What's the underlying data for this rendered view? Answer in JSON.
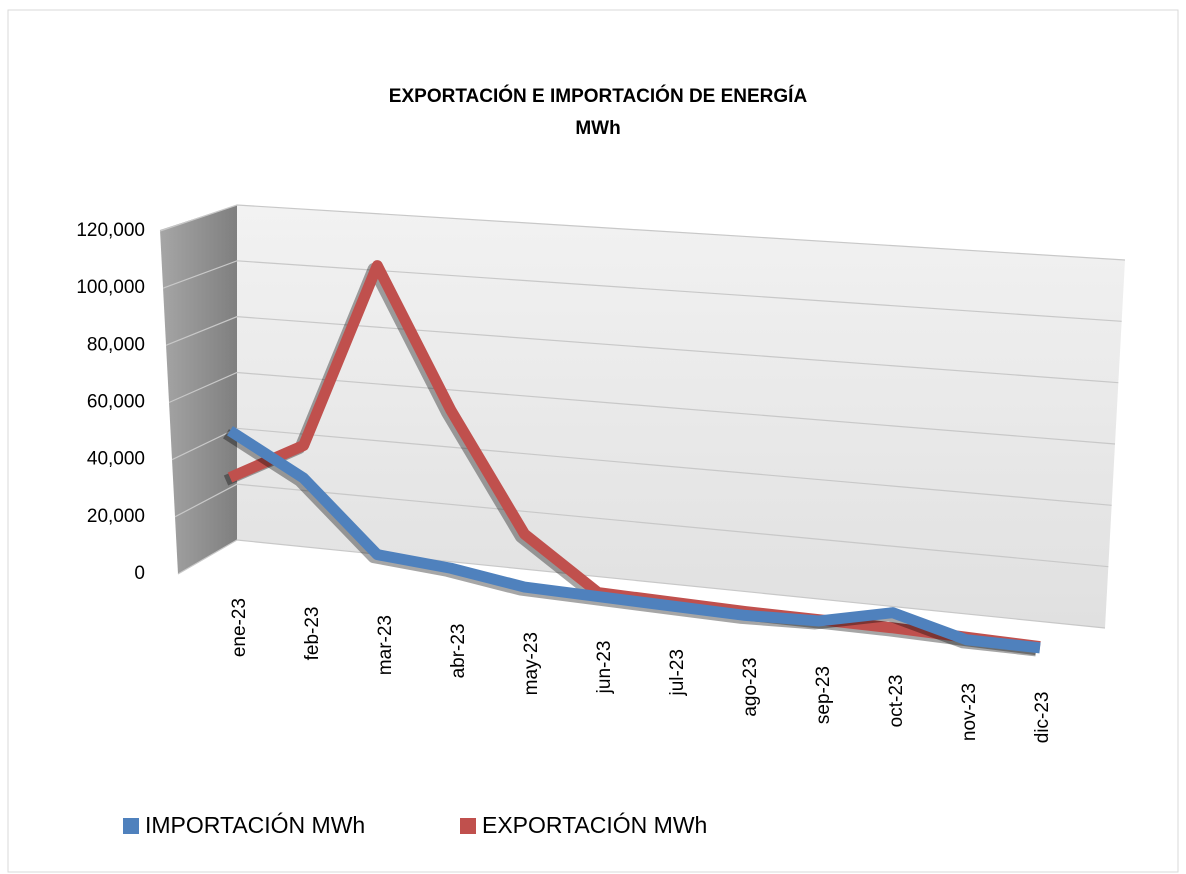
{
  "chart_data": {
    "type": "line",
    "title": "EXPORTACIÓN E IMPORTACIÓN DE ENERGÍA",
    "subtitle": "MWh",
    "categories": [
      "ene-23",
      "feb-23",
      "mar-23",
      "abr-23",
      "may-23",
      "jun-23",
      "jul-23",
      "ago-23",
      "sep-23",
      "oct-23",
      "nov-23",
      "dic-23"
    ],
    "series": [
      {
        "name": "IMPORTACIÓN MWh",
        "color": "#4f81bd",
        "values": [
          47000,
          33000,
          8000,
          6000,
          2000,
          1500,
          1000,
          500,
          1500,
          8000,
          500,
          500
        ]
      },
      {
        "name": "EXPORTACIÓN MWh",
        "color": "#c0504d",
        "values": [
          30000,
          45000,
          115000,
          65000,
          22000,
          3000,
          2500,
          2000,
          2000,
          2000,
          1500,
          1000
        ]
      }
    ],
    "ylim": [
      0,
      120000
    ],
    "yticks": [
      0,
      {
        "value": 20000,
        "label": "20,000"
      },
      {
        "value": 40000,
        "label": "40,000"
      },
      {
        "value": 60000,
        "label": "60,000"
      },
      {
        "value": 80000,
        "label": "80,000"
      },
      {
        "value": 100000,
        "label": "100,000"
      },
      {
        "value": 120000,
        "label": "120,000"
      }
    ],
    "grid": true,
    "legend": "bottom"
  }
}
